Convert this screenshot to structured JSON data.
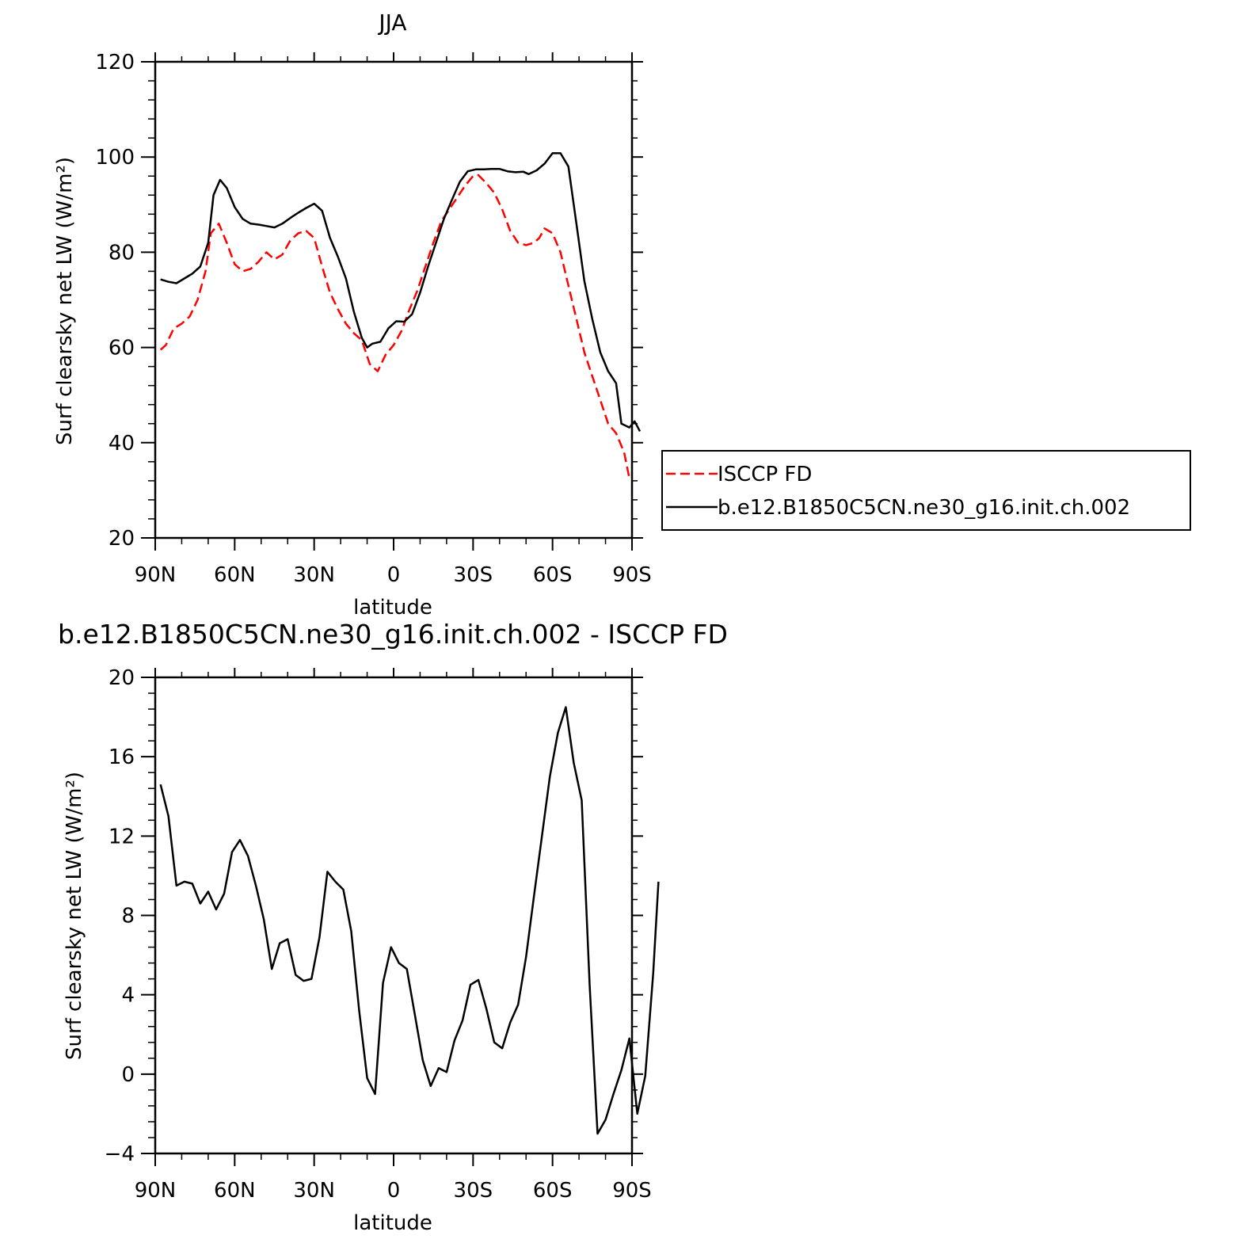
{
  "figure": {
    "background": "#ffffff"
  },
  "chart_data": [
    {
      "type": "line",
      "title": "JJA",
      "xlabel": "latitude",
      "ylabel": "Surf clearsky net LW (W/m²)",
      "xlim": [
        -90,
        90
      ],
      "ylim": [
        20,
        120
      ],
      "x_ticks": [
        {
          "value": -90,
          "label": "90N"
        },
        {
          "value": -60,
          "label": "60N"
        },
        {
          "value": -30,
          "label": "30N"
        },
        {
          "value": 0,
          "label": "0"
        },
        {
          "value": 30,
          "label": "30S"
        },
        {
          "value": 60,
          "label": "60S"
        },
        {
          "value": 90,
          "label": "90S"
        }
      ],
      "y_ticks": [
        {
          "value": 20,
          "label": "20"
        },
        {
          "value": 40,
          "label": "40"
        },
        {
          "value": 60,
          "label": "60"
        },
        {
          "value": 80,
          "label": "80"
        },
        {
          "value": 100,
          "label": "100"
        },
        {
          "value": 120,
          "label": "120"
        }
      ],
      "legend_position": "right",
      "series": [
        {
          "name": "ISCCP FD",
          "color": "#ff0000",
          "dash": "dashed",
          "points": [
            [
              -88,
              59.5
            ],
            [
              -86,
              60.5
            ],
            [
              -83,
              64
            ],
            [
              -80,
              65
            ],
            [
              -77,
              66.5
            ],
            [
              -74,
              70
            ],
            [
              -71,
              76
            ],
            [
              -69,
              84
            ],
            [
              -66,
              86
            ],
            [
              -63,
              82
            ],
            [
              -60,
              77.5
            ],
            [
              -57,
              76
            ],
            [
              -54,
              76.5
            ],
            [
              -51,
              78
            ],
            [
              -48,
              80
            ],
            [
              -45,
              78.5
            ],
            [
              -42,
              79.5
            ],
            [
              -39,
              82.5
            ],
            [
              -36,
              84
            ],
            [
              -33,
              84.5
            ],
            [
              -30,
              83
            ],
            [
              -27,
              77
            ],
            [
              -24,
              71.5
            ],
            [
              -21,
              68
            ],
            [
              -18,
              65
            ],
            [
              -15,
              63
            ],
            [
              -12,
              61.5
            ],
            [
              -9,
              56.5
            ],
            [
              -6,
              55
            ],
            [
              -3,
              58.5
            ],
            [
              0,
              60.5
            ],
            [
              3,
              63.5
            ],
            [
              6,
              68
            ],
            [
              9,
              72
            ],
            [
              12,
              77
            ],
            [
              15,
              82
            ],
            [
              18,
              86.5
            ],
            [
              21,
              89
            ],
            [
              24,
              91.5
            ],
            [
              27,
              94
            ],
            [
              30,
              96
            ],
            [
              32,
              96.2
            ],
            [
              35,
              94.5
            ],
            [
              38,
              92.5
            ],
            [
              41,
              89
            ],
            [
              44,
              84.5
            ],
            [
              47,
              82
            ],
            [
              50,
              81.5
            ],
            [
              53,
              82
            ],
            [
              55,
              83
            ],
            [
              57,
              85
            ],
            [
              60,
              84
            ],
            [
              63,
              80
            ],
            [
              66,
              73
            ],
            [
              69,
              66
            ],
            [
              72,
              59
            ],
            [
              75,
              54
            ],
            [
              78,
              49
            ],
            [
              81,
              44
            ],
            [
              84,
              42
            ],
            [
              87,
              38
            ],
            [
              89,
              32.5
            ]
          ]
        },
        {
          "name": "b.e12.B1850C5CN.ne30_g16.init.ch.002",
          "color": "#000000",
          "dash": "solid",
          "points": [
            [
              -88,
              74.3
            ],
            [
              -85,
              73.8
            ],
            [
              -82,
              73.5
            ],
            [
              -79,
              74.5
            ],
            [
              -76,
              75.5
            ],
            [
              -73,
              77
            ],
            [
              -70,
              82
            ],
            [
              -68,
              92
            ],
            [
              -65.5,
              95.2
            ],
            [
              -63,
              93.5
            ],
            [
              -60,
              89.5
            ],
            [
              -57,
              87
            ],
            [
              -54,
              86
            ],
            [
              -51,
              85.8
            ],
            [
              -48,
              85.5
            ],
            [
              -45,
              85.2
            ],
            [
              -42,
              86
            ],
            [
              -39,
              87.2
            ],
            [
              -36,
              88.3
            ],
            [
              -33,
              89.3
            ],
            [
              -30,
              90.2
            ],
            [
              -27,
              88.7
            ],
            [
              -24,
              83
            ],
            [
              -21,
              79
            ],
            [
              -18,
              74.5
            ],
            [
              -15,
              67.5
            ],
            [
              -12,
              62
            ],
            [
              -10,
              60
            ],
            [
              -8,
              60.8
            ],
            [
              -5,
              61.2
            ],
            [
              -2,
              64
            ],
            [
              1,
              65.5
            ],
            [
              4,
              65.4
            ],
            [
              7,
              67
            ],
            [
              10,
              71.5
            ],
            [
              13,
              77
            ],
            [
              16,
              82
            ],
            [
              19,
              87
            ],
            [
              22,
              91
            ],
            [
              25,
              94.8
            ],
            [
              28,
              97
            ],
            [
              31,
              97.4
            ],
            [
              34,
              97.4
            ],
            [
              37,
              97.5
            ],
            [
              40,
              97.5
            ],
            [
              43,
              97
            ],
            [
              46,
              96.8
            ],
            [
              49,
              96.9
            ],
            [
              51,
              96.4
            ],
            [
              54,
              97.2
            ],
            [
              57,
              98.6
            ],
            [
              60,
              100.8
            ],
            [
              63,
              100.8
            ],
            [
              66,
              98
            ],
            [
              69,
              86
            ],
            [
              72,
              74
            ],
            [
              75,
              66
            ],
            [
              78,
              59
            ],
            [
              81,
              55
            ],
            [
              84,
              52.5
            ],
            [
              86,
              44
            ],
            [
              89,
              43.2
            ],
            [
              91,
              44.5
            ],
            [
              93,
              42.4
            ]
          ]
        }
      ]
    },
    {
      "type": "line",
      "title": "b.e12.B1850C5CN.ne30_g16.init.ch.002 - ISCCP FD",
      "xlabel": "latitude",
      "ylabel": "Surf clearsky net LW (W/m²)",
      "xlim": [
        -90,
        90
      ],
      "ylim": [
        -4,
        20
      ],
      "x_ticks": [
        {
          "value": -90,
          "label": "90N"
        },
        {
          "value": -60,
          "label": "60N"
        },
        {
          "value": -30,
          "label": "30N"
        },
        {
          "value": 0,
          "label": "0"
        },
        {
          "value": 30,
          "label": "30S"
        },
        {
          "value": 60,
          "label": "60S"
        },
        {
          "value": 90,
          "label": "90S"
        }
      ],
      "y_ticks": [
        {
          "value": -4,
          "label": "−4"
        },
        {
          "value": 0,
          "label": "0"
        },
        {
          "value": 4,
          "label": "4"
        },
        {
          "value": 8,
          "label": "8"
        },
        {
          "value": 12,
          "label": "12"
        },
        {
          "value": 16,
          "label": "16"
        },
        {
          "value": 20,
          "label": "20"
        }
      ],
      "series": [
        {
          "color": "#000000",
          "dash": "solid",
          "points": [
            [
              -88,
              14.6
            ],
            [
              -85,
              13
            ],
            [
              -82,
              9.5
            ],
            [
              -79,
              9.7
            ],
            [
              -76,
              9.6
            ],
            [
              -73,
              8.6
            ],
            [
              -70,
              9.2
            ],
            [
              -67,
              8.3
            ],
            [
              -64,
              9.1
            ],
            [
              -61,
              11.2
            ],
            [
              -58,
              11.8
            ],
            [
              -55,
              11
            ],
            [
              -52,
              9.5
            ],
            [
              -49,
              7.8
            ],
            [
              -46,
              5.3
            ],
            [
              -43,
              6.6
            ],
            [
              -40,
              6.8
            ],
            [
              -37,
              5
            ],
            [
              -34,
              4.7
            ],
            [
              -31,
              4.8
            ],
            [
              -28,
              6.9
            ],
            [
              -25,
              10.2
            ],
            [
              -22,
              9.7
            ],
            [
              -19,
              9.3
            ],
            [
              -16,
              7.2
            ],
            [
              -13,
              3.2
            ],
            [
              -10,
              -0.2
            ],
            [
              -7,
              -1
            ],
            [
              -4,
              4.6
            ],
            [
              -1,
              6.4
            ],
            [
              2,
              5.6
            ],
            [
              5,
              5.3
            ],
            [
              8,
              3
            ],
            [
              11,
              0.7
            ],
            [
              14,
              -0.6
            ],
            [
              17,
              0.3
            ],
            [
              20,
              0.1
            ],
            [
              23,
              1.7
            ],
            [
              26,
              2.7
            ],
            [
              29,
              4.5
            ],
            [
              32,
              4.75
            ],
            [
              35,
              3.3
            ],
            [
              38,
              1.6
            ],
            [
              41,
              1.3
            ],
            [
              44,
              2.6
            ],
            [
              47,
              3.5
            ],
            [
              50,
              5.9
            ],
            [
              53,
              9
            ],
            [
              56,
              12
            ],
            [
              59,
              15
            ],
            [
              62,
              17.2
            ],
            [
              65,
              18.5
            ],
            [
              68,
              15.7
            ],
            [
              71,
              13.8
            ],
            [
              74,
              4.5
            ],
            [
              77,
              -3
            ],
            [
              80,
              -2.3
            ],
            [
              83,
              -1
            ],
            [
              86,
              0.2
            ],
            [
              89,
              1.8
            ],
            [
              92,
              -2
            ],
            [
              95,
              -0.1
            ],
            [
              98,
              5.1
            ],
            [
              100,
              9.7
            ]
          ]
        }
      ]
    }
  ]
}
